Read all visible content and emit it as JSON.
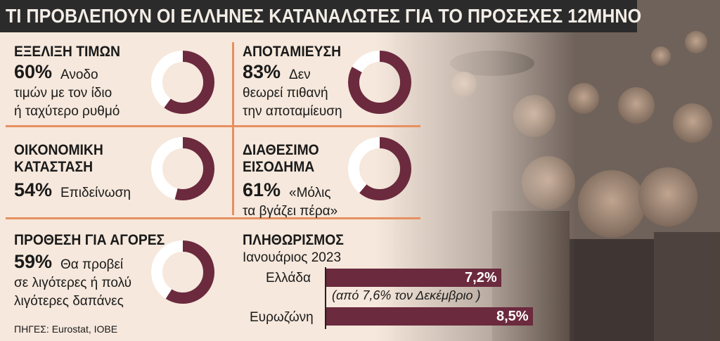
{
  "title": "ΤΙ ΠΡΟΒΛΕΠΟΥΝ ΟΙ ΕΛΛΗΝΕΣ ΚΑΤΑΝΑΛΩΤΕΣ ΓΙΑ ΤΟ ΠΡΟΣΕΧΕΣ 12ΜΗΝΟ",
  "colors": {
    "accent": "#6b2a3e",
    "ring_rest": "#ffffff",
    "separator": "#e69060",
    "background": "#f6e8dc",
    "title_bar": "#2b2b2b"
  },
  "panels": [
    {
      "heading": [
        "ΕΞΕΛΙΞΗ ΤΙΜΩΝ"
      ],
      "percent_label": "60%",
      "lines": [
        "Ανοδο",
        "τιμών με τον ίδιο",
        "ή ταχύτερο ρυθμό"
      ],
      "value": 60
    },
    {
      "heading": [
        "ΑΠΟΤΑΜΙΕΥΣΗ"
      ],
      "percent_label": "83%",
      "lines": [
        "Δεν",
        "θεωρεί πιθανή",
        "την αποταμίευση"
      ],
      "value": 83
    },
    {
      "heading": [
        "ΟΙΚΟΝΟΜΙΚΗ",
        "ΚΑΤΑΣΤΑΣΗ"
      ],
      "percent_label": "54%",
      "lines": [
        "Επιδείνωση"
      ],
      "value": 54
    },
    {
      "heading": [
        "ΔΙΑΘΕΣΙΜΟ",
        "ΕΙΣΟΔΗΜΑ"
      ],
      "percent_label": "61%",
      "lines": [
        "«Μόλις",
        "τα βγάζει πέρα»"
      ],
      "value": 61
    },
    {
      "heading": [
        "ΠΡΟΘΕΣΗ ΓΙΑ ΑΓΟΡΕΣ"
      ],
      "percent_label": "59%",
      "lines": [
        "Θα προβεί",
        "σε λιγότερες ή πολύ",
        "λιγότερες δαπάνες"
      ],
      "value": 59
    }
  ],
  "chart_data": {
    "type": "bar",
    "title": "ΠΛΗΘΩΡΙΣΜΟΣ",
    "subtitle": "Ιανουάριος 2023",
    "categories": [
      "Ελλάδα",
      "Ευρωζώνη"
    ],
    "values": [
      7.2,
      8.5
    ],
    "value_labels": [
      "7,2%",
      "8,5%"
    ],
    "annotation": "(από 7,6% τον Δεκέμβριο )",
    "xlim": [
      0,
      8.5
    ]
  },
  "source": "ΠΗΓΕΣ: Eurostat, ΙΟΒΕ"
}
